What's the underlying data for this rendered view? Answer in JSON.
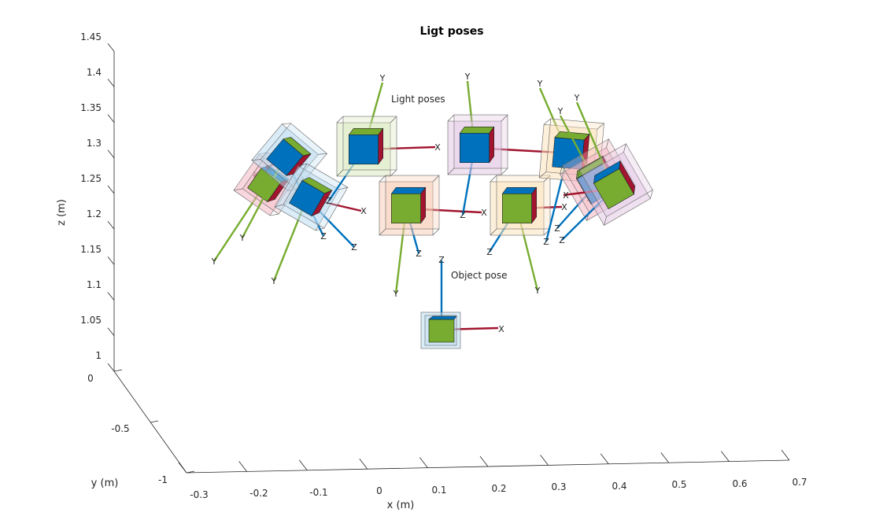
{
  "chart_data": {
    "type": "scatter",
    "title": "Ligt poses",
    "xlabel": "x (m)",
    "ylabel": "y (m)",
    "zlabel": "z (m)",
    "xlim": [
      -0.3,
      0.7
    ],
    "ylim": [
      -1,
      0
    ],
    "zlim": [
      1,
      1.45
    ],
    "xticks": [
      "-0.3",
      "-0.2",
      "-0.1",
      "0",
      "0.1",
      "0.2",
      "0.3",
      "0.4",
      "0.5",
      "0.6",
      "0.7"
    ],
    "yticks": [
      "-1",
      "-0.5",
      "0"
    ],
    "zticks": [
      "1",
      "1.05",
      "1.1",
      "1.15",
      "1.2",
      "1.25",
      "1.3",
      "1.35",
      "1.4",
      "1.45"
    ],
    "annotations": [
      "Light poses",
      "Object pose"
    ],
    "frame_axis_labels": {
      "x": "X",
      "y": "Y",
      "z": "Z"
    },
    "colors": {
      "x_axis": "#a2142f",
      "y_axis": "#77ac30",
      "z_axis": "#0072bd",
      "cube_red": "#a2142f",
      "cube_green": "#77ac30",
      "cube_blue": "#0072bd"
    },
    "light_poses": [
      {
        "x": -0.25,
        "y": -0.2,
        "z": 1.25,
        "box_color": "#f4b6c2"
      },
      {
        "x": -0.18,
        "y": -0.3,
        "z": 1.28,
        "box_color": "#bcdcf0"
      },
      {
        "x": -0.12,
        "y": -0.35,
        "z": 1.22,
        "box_color": "#bcdcf0"
      },
      {
        "x": -0.05,
        "y": -0.1,
        "z": 1.29,
        "box_color": "#dbe9bf"
      },
      {
        "x": 0.05,
        "y": -0.5,
        "z": 1.21,
        "box_color": "#f8cdb8"
      },
      {
        "x": 0.15,
        "y": -0.1,
        "z": 1.3,
        "box_color": "#e3c8e6"
      },
      {
        "x": 0.28,
        "y": -0.5,
        "z": 1.21,
        "box_color": "#fbe3bd"
      },
      {
        "x": 0.38,
        "y": -0.1,
        "z": 1.28,
        "box_color": "#fbe3bd"
      },
      {
        "x": 0.42,
        "y": -0.3,
        "z": 1.24,
        "box_color": "#f4b6c2"
      },
      {
        "x": 0.45,
        "y": -0.4,
        "z": 1.23,
        "box_color": "#e3c8e6"
      }
    ],
    "object_pose": {
      "x": 0.1,
      "y": -0.5,
      "z": 1.05,
      "box_color": "#bcdcf0"
    },
    "grid": false,
    "legend": "none"
  }
}
